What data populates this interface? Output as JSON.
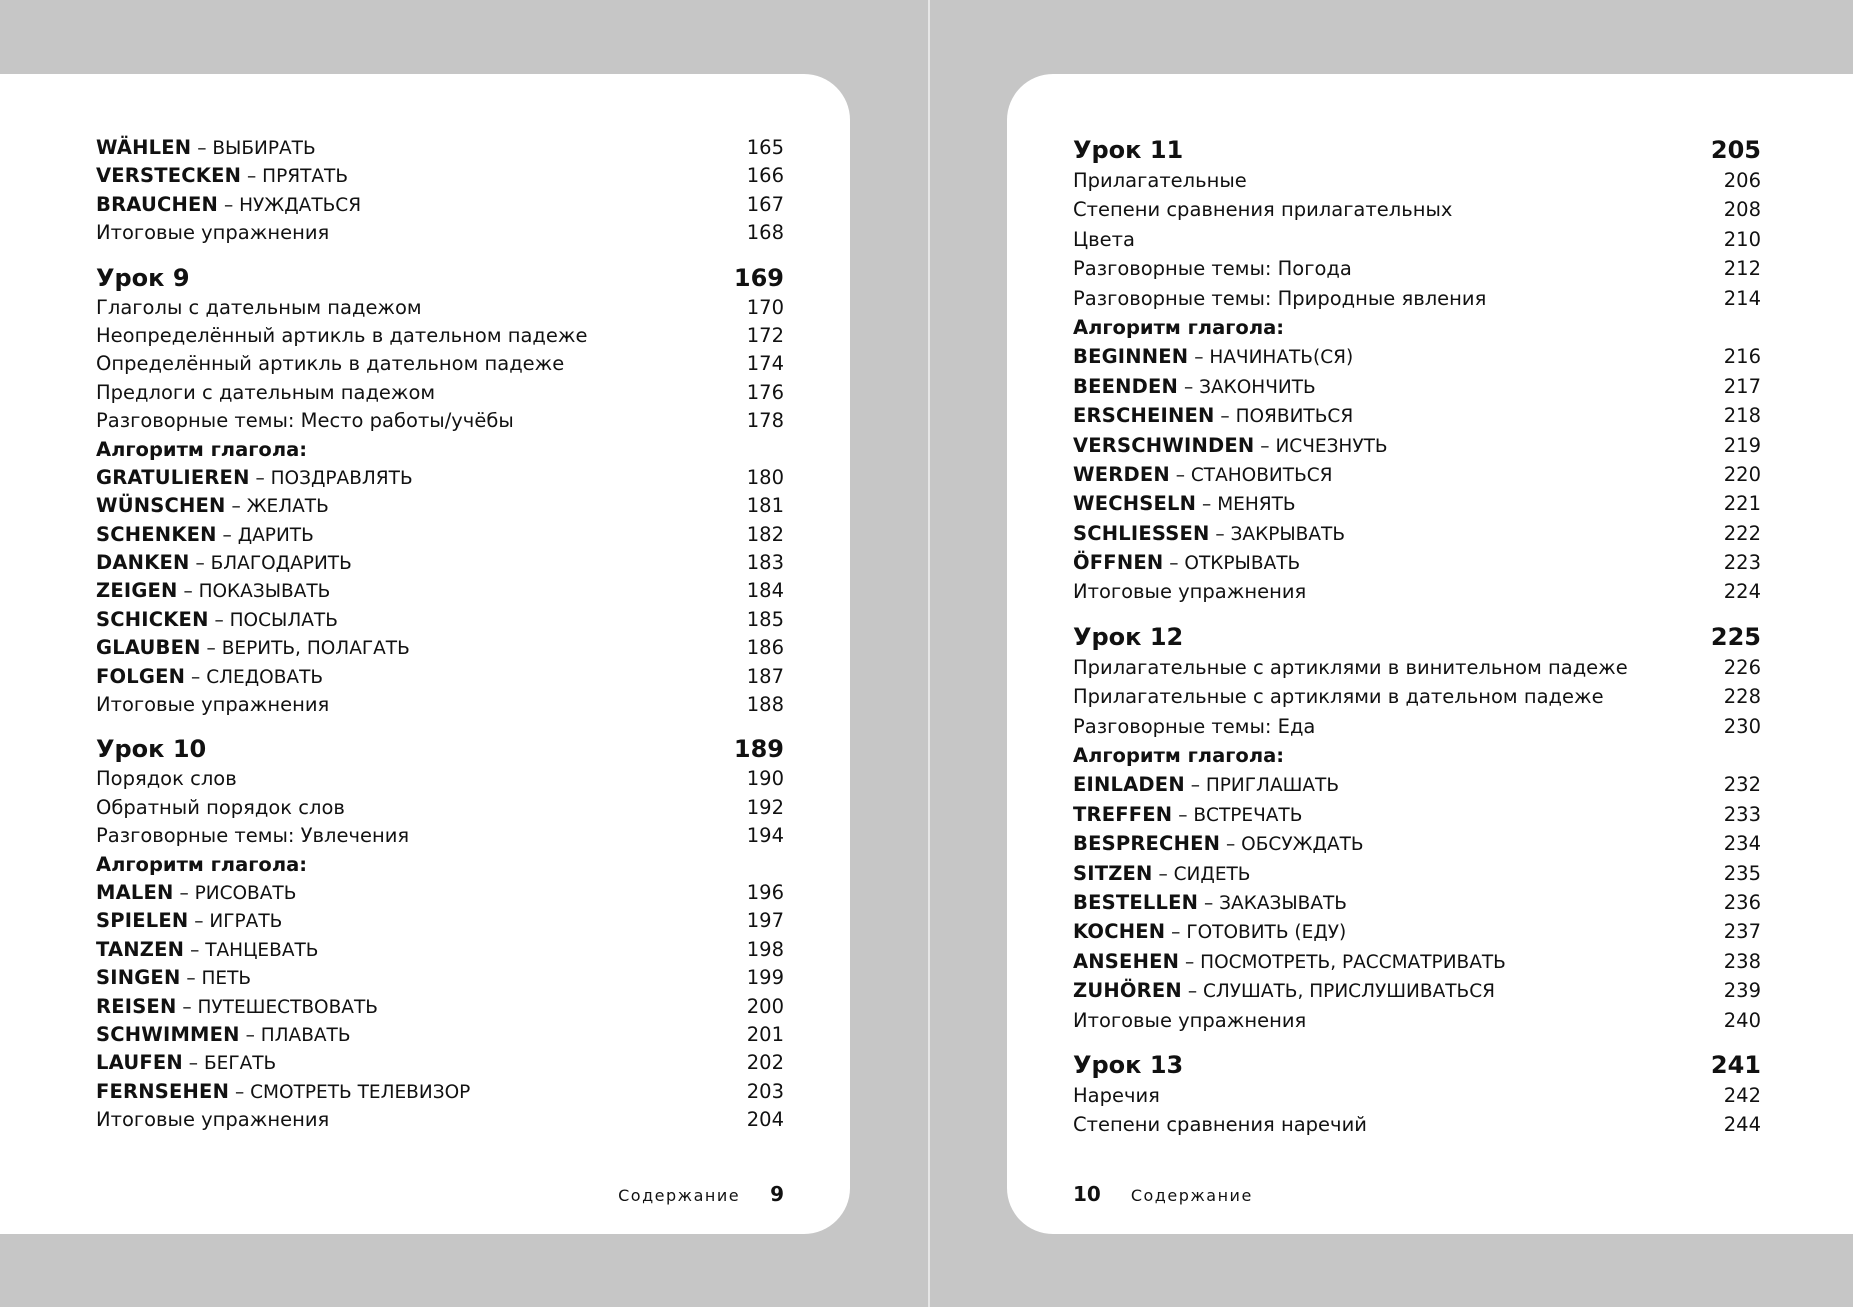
{
  "pages": [
    {
      "side": "left",
      "entries": [
        {
          "type": "verb",
          "de": "WÄHLEN",
          "ru": "ВЫБИРАТЬ",
          "page": "165"
        },
        {
          "type": "verb",
          "de": "VERSTECKEN",
          "ru": "ПРЯТАТЬ",
          "page": "166"
        },
        {
          "type": "verb",
          "de": "BRAUCHEN",
          "ru": "НУЖДАТЬСЯ",
          "page": "167"
        },
        {
          "type": "item",
          "title": "Итоговые упражнения",
          "page": "168"
        },
        {
          "type": "lesson",
          "title": "Урок 9",
          "page": "169"
        },
        {
          "type": "item",
          "title": "Глаголы с дательным падежом",
          "page": "170"
        },
        {
          "type": "item",
          "title": "Неопределённый артикль в дательном падеже",
          "page": "172"
        },
        {
          "type": "item",
          "title": "Определённый артикль в дательном падеже",
          "page": "174"
        },
        {
          "type": "item",
          "title": "Предлоги с дательным падежом",
          "page": "176"
        },
        {
          "type": "item",
          "title": "Разговорные темы: Место работы/учёбы",
          "page": "178"
        },
        {
          "type": "heading",
          "title": "Алгоритм глагола:"
        },
        {
          "type": "verb",
          "de": "GRATULIEREN",
          "ru": "ПОЗДРАВЛЯТЬ",
          "page": "180"
        },
        {
          "type": "verb",
          "de": "WÜNSCHEN",
          "ru": "ЖЕЛАТЬ",
          "page": "181"
        },
        {
          "type": "verb",
          "de": "SCHENKEN",
          "ru": "ДАРИТЬ",
          "page": "182"
        },
        {
          "type": "verb",
          "de": "DANKEN",
          "ru": "БЛАГОДАРИТЬ",
          "page": "183"
        },
        {
          "type": "verb",
          "de": "ZEIGEN",
          "ru": "ПОКАЗЫВАТЬ",
          "page": "184"
        },
        {
          "type": "verb",
          "de": "SCHICKEN",
          "ru": "ПОСЫЛАТЬ",
          "page": "185"
        },
        {
          "type": "verb",
          "de": "GLAUBEN",
          "ru": "ВЕРИТЬ, ПОЛАГАТЬ",
          "page": "186"
        },
        {
          "type": "verb",
          "de": "FOLGEN",
          "ru": "СЛЕДОВАТЬ",
          "page": "187"
        },
        {
          "type": "item",
          "title": "Итоговые упражнения",
          "page": "188"
        },
        {
          "type": "lesson",
          "title": "Урок 10",
          "page": "189"
        },
        {
          "type": "item",
          "title": "Порядок слов",
          "page": "190"
        },
        {
          "type": "item",
          "title": "Обратный порядок слов",
          "page": "192"
        },
        {
          "type": "item",
          "title": "Разговорные темы: Увлечения",
          "page": "194"
        },
        {
          "type": "heading",
          "title": "Алгоритм глагола:"
        },
        {
          "type": "verb",
          "de": "MALEN",
          "ru": "РИСОВАТЬ",
          "page": "196"
        },
        {
          "type": "verb",
          "de": "SPIELEN",
          "ru": "ИГРАТЬ",
          "page": "197"
        },
        {
          "type": "verb",
          "de": "TANZEN",
          "ru": "ТАНЦЕВАТЬ",
          "page": "198"
        },
        {
          "type": "verb",
          "de": "SINGEN",
          "ru": "ПЕТЬ",
          "page": "199"
        },
        {
          "type": "verb",
          "de": "REISEN",
          "ru": "ПУТЕШЕСТВОВАТЬ",
          "page": "200"
        },
        {
          "type": "verb",
          "de": "SCHWIMMEN",
          "ru": "ПЛАВАТЬ",
          "page": "201"
        },
        {
          "type": "verb",
          "de": "LAUFEN",
          "ru": "БЕГАТЬ",
          "page": "202"
        },
        {
          "type": "verb",
          "de": "FERNSEHEN",
          "ru": "СМОТРЕТЬ ТЕЛЕВИЗОР",
          "page": "203"
        },
        {
          "type": "item",
          "title": "Итоговые упражнения",
          "page": "204"
        }
      ],
      "footer": {
        "label": "Содержание",
        "number": "9"
      }
    },
    {
      "side": "right",
      "entries": [
        {
          "type": "lesson",
          "title": "Урок 11",
          "page": "205"
        },
        {
          "type": "item",
          "title": "Прилагательные",
          "page": "206"
        },
        {
          "type": "item",
          "title": "Степени сравнения прилагательных",
          "page": "208"
        },
        {
          "type": "item",
          "title": "Цвета",
          "page": "210"
        },
        {
          "type": "item",
          "title": "Разговорные темы: Погода",
          "page": "212"
        },
        {
          "type": "item",
          "title": "Разговорные темы: Природные явления",
          "page": "214"
        },
        {
          "type": "heading",
          "title": "Алгоритм глагола:"
        },
        {
          "type": "verb",
          "de": "BEGINNEN",
          "ru": "НАЧИНАТЬ(СЯ)",
          "page": "216"
        },
        {
          "type": "verb",
          "de": "BEENDEN",
          "ru": "ЗАКОНЧИТЬ",
          "page": "217"
        },
        {
          "type": "verb",
          "de": "ERSCHEINEN",
          "ru": "ПОЯВИТЬСЯ",
          "page": "218"
        },
        {
          "type": "verb",
          "de": "VERSCHWINDEN",
          "ru": "ИСЧЕЗНУТЬ",
          "page": "219"
        },
        {
          "type": "verb",
          "de": "WERDEN",
          "ru": "СТАНОВИТЬСЯ",
          "page": "220"
        },
        {
          "type": "verb",
          "de": "WECHSELN",
          "ru": "МЕНЯТЬ",
          "page": "221"
        },
        {
          "type": "verb",
          "de": "SCHLIESSEN",
          "ru": "ЗАКРЫВАТЬ",
          "page": "222"
        },
        {
          "type": "verb",
          "de": "ÖFFNEN",
          "ru": "ОТКРЫВАТЬ",
          "page": "223"
        },
        {
          "type": "item",
          "title": "Итоговые упражнения",
          "page": "224"
        },
        {
          "type": "lesson",
          "title": "Урок 12",
          "page": "225"
        },
        {
          "type": "item",
          "title": "Прилагательные с артиклями в винительном падеже",
          "page": "226"
        },
        {
          "type": "item",
          "title": "Прилагательные с артиклями в дательном падеже",
          "page": "228"
        },
        {
          "type": "item",
          "title": "Разговорные темы: Еда",
          "page": "230"
        },
        {
          "type": "heading",
          "title": "Алгоритм глагола:"
        },
        {
          "type": "verb",
          "de": "EINLADEN",
          "ru": "ПРИГЛАШАТЬ",
          "page": "232"
        },
        {
          "type": "verb",
          "de": "TREFFEN",
          "ru": "ВСТРЕЧАТЬ",
          "page": "233"
        },
        {
          "type": "verb",
          "de": "BESPRECHEN",
          "ru": "ОБСУЖДАТЬ",
          "page": "234"
        },
        {
          "type": "verb",
          "de": "SITZEN",
          "ru": "СИДЕТЬ",
          "page": "235"
        },
        {
          "type": "verb",
          "de": "BESTELLEN",
          "ru": "ЗАКАЗЫВАТЬ",
          "page": "236"
        },
        {
          "type": "verb",
          "de": "KOCHEN",
          "ru": "ГОТОВИТЬ (ЕДУ)",
          "page": "237"
        },
        {
          "type": "verb",
          "de": "ANSEHEN",
          "ru": "ПОСМОТРЕТЬ, РАССМАТРИВАТЬ",
          "page": "238"
        },
        {
          "type": "verb",
          "de": "ZUHÖREN",
          "ru": "СЛУШАТЬ, ПРИСЛУШИВАТЬСЯ",
          "page": "239"
        },
        {
          "type": "item",
          "title": "Итоговые упражнения",
          "page": "240"
        },
        {
          "type": "lesson",
          "title": "Урок 13",
          "page": "241"
        },
        {
          "type": "item",
          "title": "Наречия",
          "page": "242"
        },
        {
          "type": "item",
          "title": "Степени сравнения наречий",
          "page": "244"
        }
      ],
      "footer": {
        "number": "10",
        "label": "Содержание"
      }
    }
  ],
  "verb_separator": " – ",
  "colors": {
    "background": "#c6c6c6",
    "page": "#ffffff",
    "text": "#111111"
  }
}
